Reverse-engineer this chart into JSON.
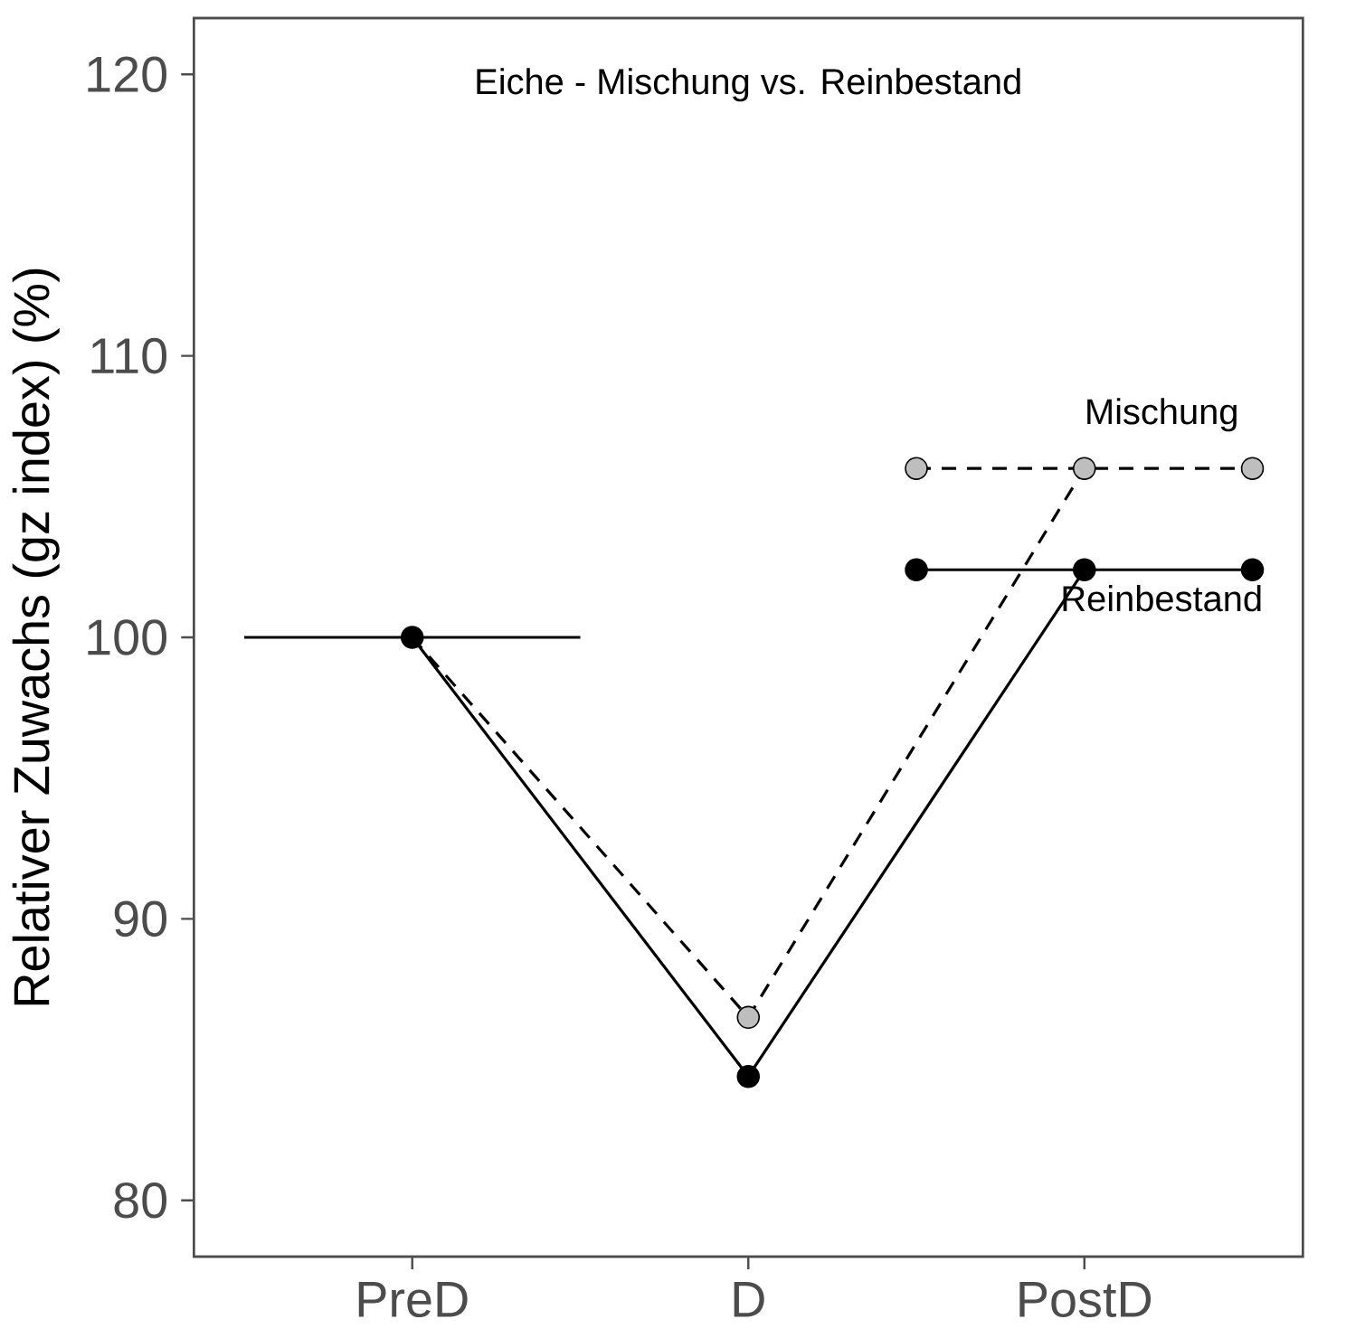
{
  "chart_data": {
    "type": "line",
    "title": "Eiche - Mischung vs. Reinbestand",
    "ylabel": "Relativer Zuwachs (gz index) (%)",
    "categories": [
      null,
      "PreD",
      null,
      "D",
      null,
      "PostD",
      null
    ],
    "ylim": [
      78,
      122
    ],
    "yticks": [
      80,
      90,
      100,
      110,
      120
    ],
    "series": [
      {
        "values": [
          100,
          100,
          100,
          null,
          null,
          null,
          null
        ],
        "color": "#000000",
        "marker": "none",
        "line_style": "solid"
      },
      {
        "values": [
          null,
          100,
          null,
          86.5,
          null,
          106.0,
          null
        ],
        "color": "#000000",
        "marker": "none",
        "line_style": "dashed"
      },
      {
        "name": "Mischung",
        "values": [
          null,
          null,
          null,
          null,
          106.0,
          106.0,
          106.0
        ],
        "color": "#000000",
        "marker": "none",
        "line_style": "dashed"
      },
      {
        "type": "scatter",
        "values": [
          null,
          null,
          null,
          86.5,
          106.0,
          106.0,
          106.0
        ],
        "color": "#bebebe",
        "marker": "circle"
      },
      {
        "values": [
          null,
          100,
          null,
          84.4,
          null,
          102.4,
          null
        ],
        "color": "#000000",
        "marker": "circle",
        "line_style": "solid"
      },
      {
        "name": "Reinbestand",
        "values": [
          null,
          null,
          null,
          null,
          102.4,
          null,
          102.4
        ],
        "color": "#000000",
        "marker": "circle",
        "line_style": "solid"
      }
    ]
  }
}
